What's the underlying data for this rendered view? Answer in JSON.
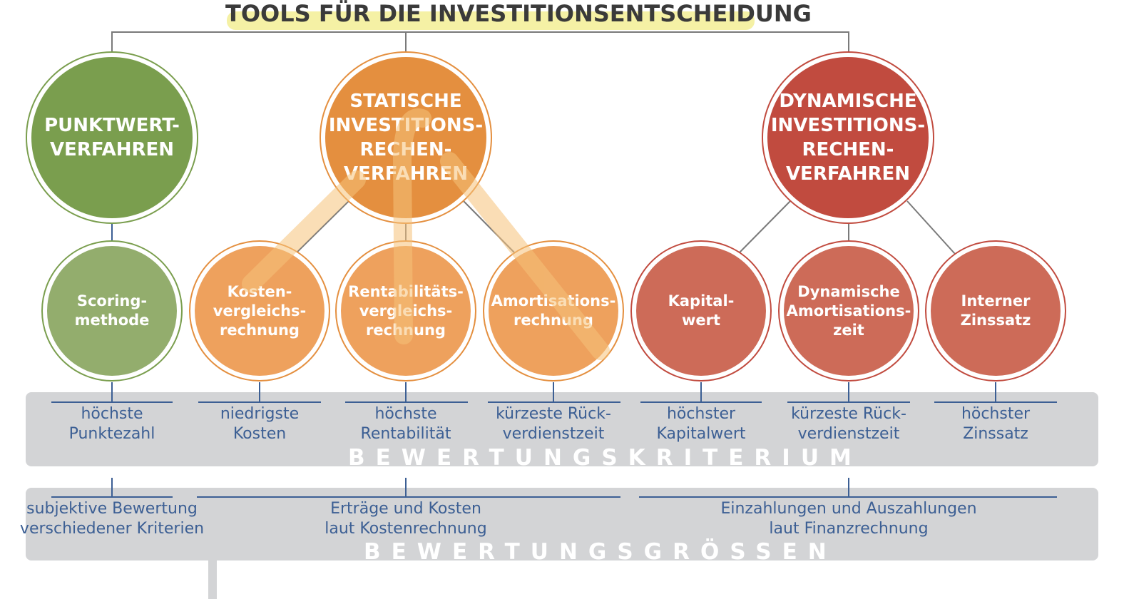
{
  "title": "TOOLS FÜR DIE INVESTITIONSENTSCHEIDUNG",
  "colors": {
    "green": "#7a9e4e",
    "green_light": "#93ad6d",
    "orange": "#e48f3f",
    "orange_light": "#eea15d",
    "red": "#c14b3f",
    "red_light": "#cd6b58",
    "band": "#d3d4d6",
    "text_blue": "#3c5f94",
    "highlight": "#f3ee8e"
  },
  "main_methods": [
    {
      "label": "PUNKTWERT-\nVERFAHREN"
    },
    {
      "label": "STATISCHE\nINVESTITIONS-\nRECHEN-\nVERFAHREN"
    },
    {
      "label": "DYNAMISCHE\nINVESTITIONS-\nRECHEN-\nVERFAHREN"
    }
  ],
  "sub_methods": [
    {
      "label": "Scoring-\nmethode",
      "criterion": "höchste\nPunktezahl"
    },
    {
      "label": "Kosten-\nvergleichs-\nrechnung",
      "criterion": "niedrigste\nKosten"
    },
    {
      "label": "Rentabilitäts-\nvergleichs-\nrechnung",
      "criterion": "höchste\nRentabilität"
    },
    {
      "label": "Amortisations-\nrechnung",
      "criterion": "kürzeste Rück-\nverdienstzeit"
    },
    {
      "label": "Kapital-\nwert",
      "criterion": "höchster\nKapitalwert"
    },
    {
      "label": "Dynamische\nAmortisations-\nzeit",
      "criterion": "kürzeste Rück-\nverdienstzeit"
    },
    {
      "label": "Interner\nZinssatz",
      "criterion": "höchster\nZinssatz"
    }
  ],
  "bands": {
    "criteria_label": "BEWERTUNGSKRITERIUM",
    "quantities_label": "BEWERTUNGSGRÖSSEN"
  },
  "quantities": [
    {
      "label": "subjektive Bewertung\nverschiedener Kriterien"
    },
    {
      "label": "Erträge und Kosten\nlaut Kostenrechnung"
    },
    {
      "label": "Einzahlungen und Auszahlungen\nlaut Finanzrechnung"
    }
  ]
}
